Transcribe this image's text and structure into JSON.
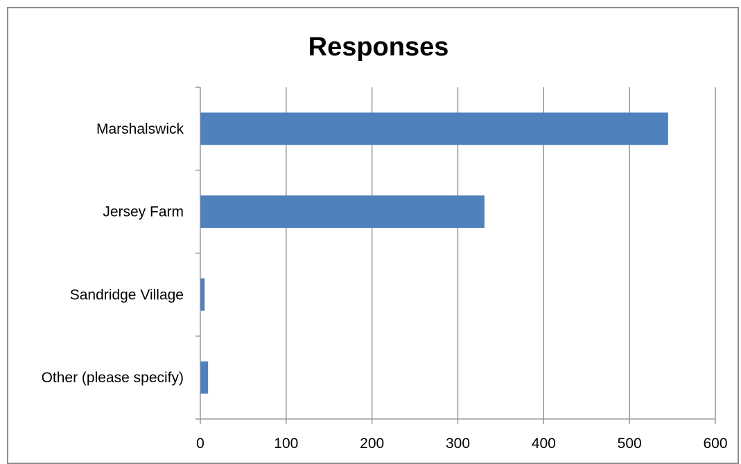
{
  "chart_data": {
    "type": "bar",
    "orientation": "horizontal",
    "title": "Responses",
    "categories": [
      "Marshalswick",
      "Jersey Farm",
      "Sandridge Village",
      "Other (please specify)"
    ],
    "values": [
      545,
      331,
      5,
      9
    ],
    "xlim": [
      0,
      600
    ],
    "x_ticks": [
      "0",
      "100",
      "200",
      "300",
      "400",
      "500",
      "600"
    ],
    "grid": "vertical",
    "legend": "none",
    "bar_color": "#4f81bd",
    "grid_color": "#898989"
  }
}
